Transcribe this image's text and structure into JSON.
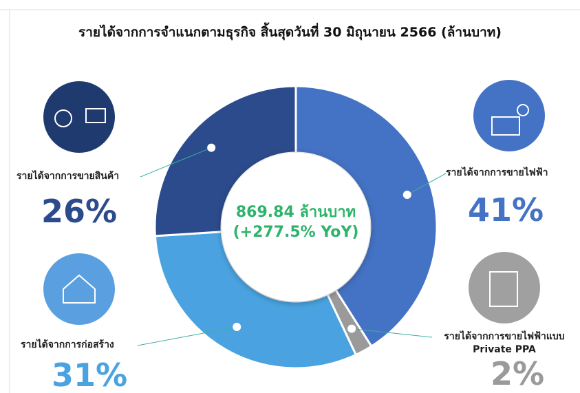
{
  "chart_data": {
    "type": "donut",
    "title": "รายได้จากการจำแนกตามธุรกิจ สิ้นสุดวันที่ 30 มิถุนายน 2566 (ล้านบาท)",
    "center_text": [
      "869.84 ล้านบาท",
      "(+277.5% YoY)"
    ],
    "categories": [
      "รายได้จากการขายไฟฟ้า",
      "รายได้จากการขายไฟฟ้าแบบ Private PPA",
      "รายได้จากการก่อสร้าง",
      "รายได้จากการขายสินค้า"
    ],
    "values": [
      41,
      2,
      31,
      26
    ],
    "value_labels": [
      "41%",
      "2%",
      "31%",
      "26%"
    ],
    "colors": [
      "#4472c4",
      "#9a9a9a",
      "#4aa3e0",
      "#2c4b8c"
    ]
  }
}
